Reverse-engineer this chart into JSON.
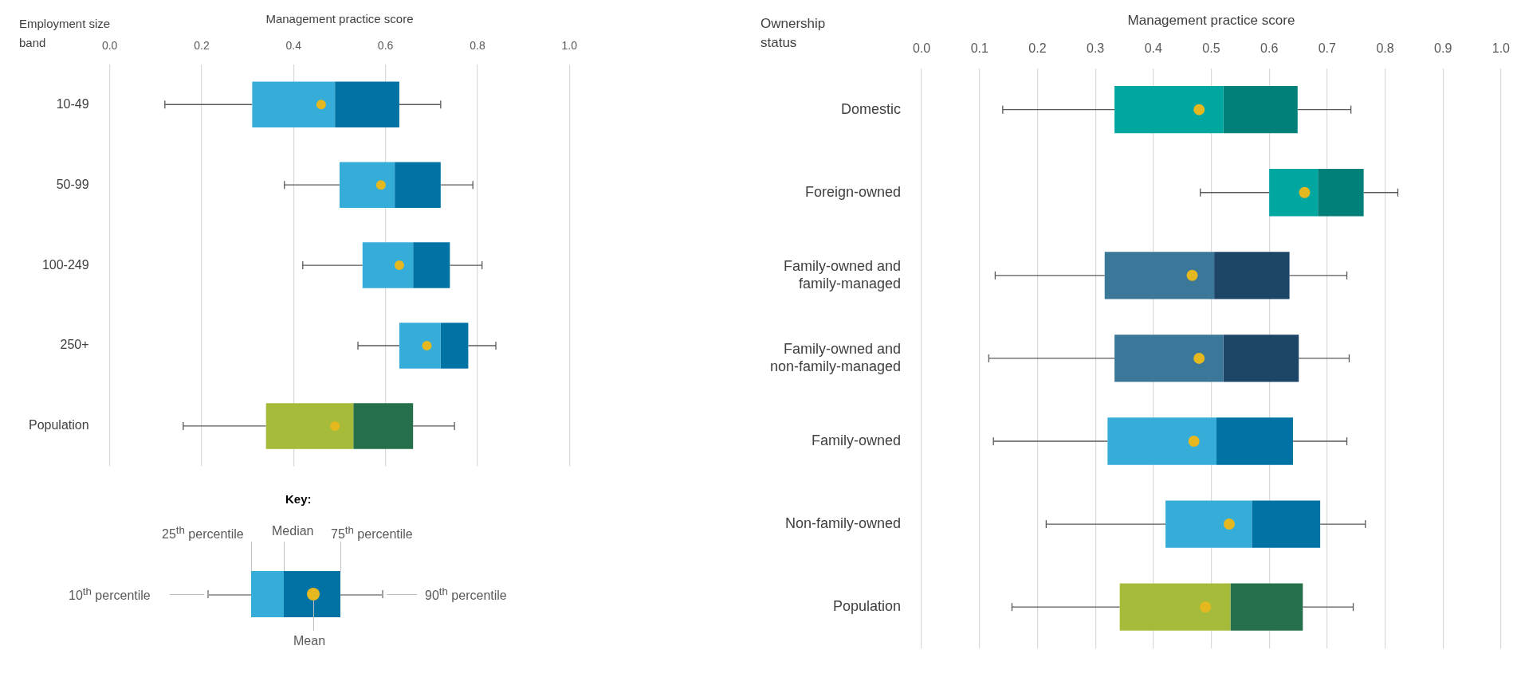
{
  "chart_data": [
    {
      "type": "box",
      "orientation": "horizontal",
      "xlabel": "Management practice score",
      "ylabel": "Employment size band",
      "categories": [
        "10-49",
        "50-99",
        "100-249",
        "250+",
        "Population"
      ],
      "boxes": [
        {
          "low": 0.12,
          "q1": 0.31,
          "median": 0.49,
          "q3": 0.63,
          "high": 0.72,
          "mean": 0.46
        },
        {
          "low": 0.38,
          "q1": 0.5,
          "median": 0.62,
          "q3": 0.72,
          "high": 0.79,
          "mean": 0.59
        },
        {
          "low": 0.42,
          "q1": 0.55,
          "median": 0.66,
          "q3": 0.74,
          "high": 0.81,
          "mean": 0.63
        },
        {
          "low": 0.54,
          "q1": 0.63,
          "median": 0.72,
          "q3": 0.78,
          "high": 0.84,
          "mean": 0.69
        },
        {
          "low": 0.16,
          "q1": 0.34,
          "median": 0.53,
          "q3": 0.66,
          "high": 0.75,
          "mean": 0.49
        }
      ],
      "colors": [
        [
          "#36acd8",
          "#0073a4"
        ],
        [
          "#36acd8",
          "#0073a4"
        ],
        [
          "#36acd8",
          "#0073a4"
        ],
        [
          "#36acd8",
          "#0073a4"
        ],
        [
          "#a7bb3a",
          "#256f4a"
        ]
      ],
      "xlim": [
        0,
        1
      ],
      "xticks": [
        {
          "value": 0,
          "label": "0.0"
        },
        {
          "value": 0.2,
          "label": "0.2"
        },
        {
          "value": 0.4,
          "label": "0.4"
        },
        {
          "value": 0.6,
          "label": "0.6"
        },
        {
          "value": 0.8,
          "label": "0.8"
        },
        {
          "value": 1,
          "label": "1.0"
        }
      ],
      "grid": "x",
      "marker": "circle",
      "annotations": [
        "Key:",
        "25$^{th}$ percentile",
        "Median",
        "75$^{th}$ percentile",
        "10$^{th}$ percentile",
        "90$^{th}$ percentile",
        "Mean"
      ]
    },
    {
      "type": "box",
      "orientation": "horizontal",
      "xlabel": "Management practice score",
      "ylabel": "Ownership status",
      "categories": [
        "Domestic",
        "Foreign-owned",
        "Family-owned and family-managed",
        "Family-owned and non-family-managed",
        "Family-owned",
        "Non-family-owned",
        "Population"
      ],
      "boxes": [
        {
          "low": 0.14,
          "q1": 0.333,
          "median": 0.521,
          "q3": 0.649,
          "high": 0.741,
          "mean": 0.479
        },
        {
          "low": 0.481,
          "q1": 0.6,
          "median": 0.684,
          "q3": 0.763,
          "high": 0.822,
          "mean": 0.661
        },
        {
          "low": 0.127,
          "q1": 0.316,
          "median": 0.505,
          "q3": 0.635,
          "high": 0.734,
          "mean": 0.467
        },
        {
          "low": 0.116,
          "q1": 0.333,
          "median": 0.521,
          "q3": 0.651,
          "high": 0.738,
          "mean": 0.479
        },
        {
          "low": 0.124,
          "q1": 0.321,
          "median": 0.509,
          "q3": 0.641,
          "high": 0.734,
          "mean": 0.47
        },
        {
          "low": 0.215,
          "q1": 0.421,
          "median": 0.57,
          "q3": 0.688,
          "high": 0.766,
          "mean": 0.531
        },
        {
          "low": 0.156,
          "q1": 0.342,
          "median": 0.533,
          "q3": 0.658,
          "high": 0.745,
          "mean": 0.49
        }
      ],
      "colors": [
        [
          "#00a6a0",
          "#008079"
        ],
        [
          "#00a6a0",
          "#008079"
        ],
        [
          "#3b7799",
          "#1d4568"
        ],
        [
          "#3b7799",
          "#1d4568"
        ],
        [
          "#36acd8",
          "#0073a4"
        ],
        [
          "#36acd8",
          "#0073a4"
        ],
        [
          "#a7bb3a",
          "#256f4a"
        ]
      ],
      "xlim": [
        0,
        1
      ],
      "xticks": [
        {
          "value": 0,
          "label": "0.0"
        },
        {
          "value": 0.1,
          "label": "0.1"
        },
        {
          "value": 0.2,
          "label": "0.2"
        },
        {
          "value": 0.3,
          "label": "0.3"
        },
        {
          "value": 0.4,
          "label": "0.4"
        },
        {
          "value": 0.5,
          "label": "0.5"
        },
        {
          "value": 0.6,
          "label": "0.6"
        },
        {
          "value": 0.7,
          "label": "0.7"
        },
        {
          "value": 0.8,
          "label": "0.8"
        },
        {
          "value": 0.9,
          "label": "0.9"
        },
        {
          "value": 1,
          "label": "1.0"
        }
      ],
      "grid": "x",
      "marker": "circle"
    }
  ]
}
